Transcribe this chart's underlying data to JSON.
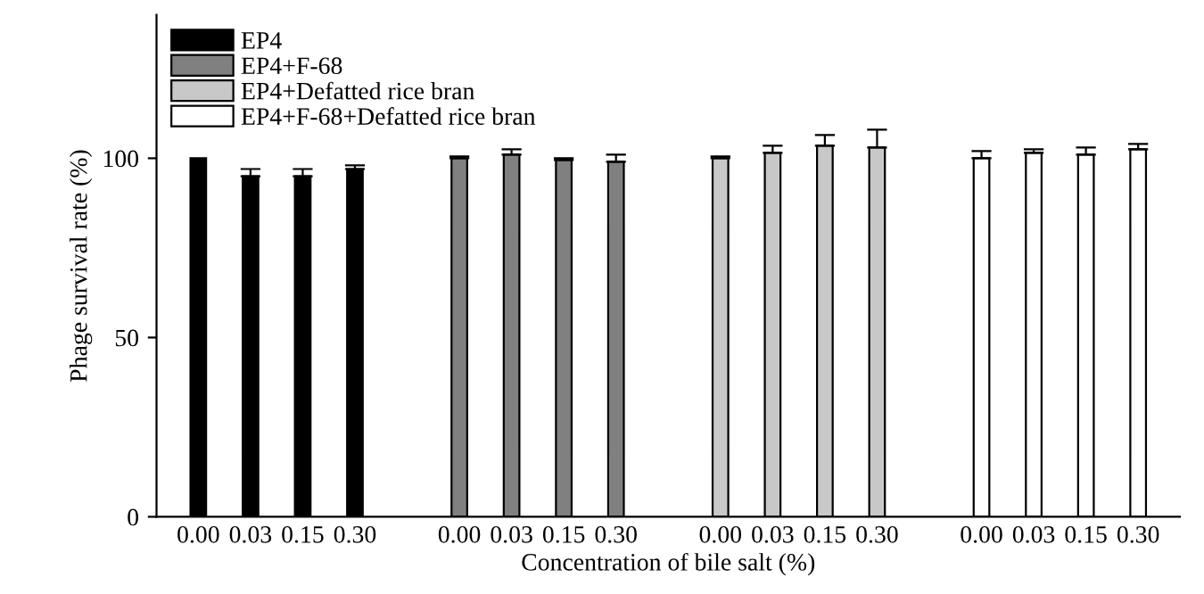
{
  "chart_data": {
    "type": "bar",
    "xlabel": "Concentration of bile salt (%)",
    "ylabel": "Phage survival rate (%)",
    "categories": [
      "0.00",
      "0.03",
      "0.15",
      "0.30",
      null,
      "0.00",
      "0.03",
      "0.15",
      "0.30",
      null,
      "0.00",
      "0.03",
      "0.15",
      "0.30",
      null,
      "0.00",
      "0.03",
      "0.15",
      "0.30"
    ],
    "series": [
      {
        "name": "EP4",
        "color": "#000000",
        "values": [
          100,
          95,
          95,
          97,
          null,
          null,
          null,
          null,
          null,
          null,
          null,
          null,
          null,
          null,
          null,
          null,
          null,
          null,
          null
        ],
        "errors": [
          null,
          2,
          2,
          1,
          null,
          null,
          null,
          null,
          null,
          null,
          null,
          null,
          null,
          null,
          null,
          null,
          null,
          null,
          null
        ]
      },
      {
        "name": "EP4+F-68",
        "color": "#808080",
        "values": [
          null,
          null,
          null,
          null,
          null,
          100,
          101,
          99.5,
          99,
          null,
          null,
          null,
          null,
          null,
          null,
          null,
          null,
          null,
          null
        ],
        "errors": [
          null,
          null,
          null,
          null,
          null,
          0.5,
          1.5,
          0.5,
          2,
          null,
          null,
          null,
          null,
          null,
          null,
          null,
          null,
          null,
          null
        ]
      },
      {
        "name": "EP4+Defatted rice bran",
        "color": "#c8c8c8",
        "values": [
          null,
          null,
          null,
          null,
          null,
          null,
          null,
          null,
          null,
          null,
          100,
          101.5,
          103.5,
          103,
          null,
          null,
          null,
          null,
          null
        ],
        "errors": [
          null,
          null,
          null,
          null,
          null,
          null,
          null,
          null,
          null,
          null,
          0.5,
          2,
          3,
          5,
          null,
          null,
          null,
          null,
          null
        ]
      },
      {
        "name": "EP4+F-68+Defatted rice bran",
        "color": "#ffffff",
        "values": [
          null,
          null,
          null,
          null,
          null,
          null,
          null,
          null,
          null,
          null,
          null,
          null,
          null,
          null,
          null,
          100,
          101.5,
          101,
          102.5
        ],
        "errors": [
          null,
          null,
          null,
          null,
          null,
          null,
          null,
          null,
          null,
          null,
          null,
          null,
          null,
          null,
          null,
          2,
          1,
          2,
          1.5
        ]
      }
    ],
    "ylim": [
      0,
      140
    ],
    "yticks": [
      0,
      50,
      100
    ],
    "grid": false,
    "legend": "top left"
  }
}
